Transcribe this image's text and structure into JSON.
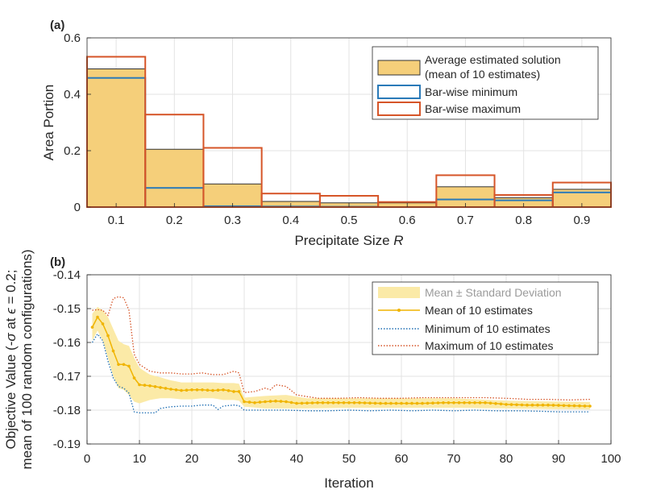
{
  "chart_data": [
    {
      "panel_label": "(a)",
      "type": "bar",
      "xlabel": "Precipitate Size ",
      "xlabel_var": "R",
      "ylabel": "Area Portion",
      "xlim": [
        0.05,
        0.95
      ],
      "ylim": [
        0,
        0.6
      ],
      "xticks": [
        "0.1",
        "0.2",
        "0.3",
        "0.4",
        "0.5",
        "0.6",
        "0.7",
        "0.8",
        "0.9"
      ],
      "yticks": [
        "0",
        "0.2",
        "0.4",
        "0.6"
      ],
      "grid": true,
      "categories": [
        0.1,
        0.2,
        0.3,
        0.4,
        0.5,
        0.6,
        0.7,
        0.8,
        0.9
      ],
      "bar_width": 0.1,
      "series": [
        {
          "name": "Average estimated solution",
          "name2": "(mean of 10 estimates)",
          "style": "filled",
          "values": [
            0.49,
            0.205,
            0.082,
            0.02,
            0.015,
            0.015,
            0.072,
            0.033,
            0.063
          ]
        },
        {
          "name": "Bar-wise minimum",
          "style": "outline",
          "values": [
            0.458,
            0.068,
            0.003,
            0.002,
            0.001,
            0.0,
            0.027,
            0.024,
            0.052
          ]
        },
        {
          "name": "Bar-wise maximum",
          "style": "outline",
          "values": [
            0.533,
            0.328,
            0.21,
            0.048,
            0.04,
            0.018,
            0.113,
            0.043,
            0.087
          ]
        }
      ],
      "legend_position": "top-right"
    },
    {
      "panel_label": "(b)",
      "type": "line",
      "xlabel": "Iteration",
      "ylabel_line1": "Objective Value (-",
      "ylabel_sigma": "σ",
      "ylabel_mid": " at ",
      "ylabel_eps": "ϵ",
      "ylabel_end": " = 0.2;",
      "ylabel_line2": "mean of 100 random configurations)",
      "xlim": [
        0,
        100
      ],
      "ylim": [
        -0.19,
        -0.14
      ],
      "xticks": [
        "0",
        "10",
        "20",
        "30",
        "40",
        "50",
        "60",
        "70",
        "80",
        "90",
        "100"
      ],
      "yticks": [
        "-0.19",
        "-0.18",
        "-0.17",
        "-0.16",
        "-0.15",
        "-0.14"
      ],
      "grid": true,
      "legend_position": "top-right",
      "band_label": "Mean ± Standard Deviation",
      "mean_label": "Mean of 10 estimates",
      "min_label": "Minimum of 10 estimates",
      "max_label": "Maximum of 10 estimates",
      "keypoints": {
        "mean": [
          [
            1,
            -0.1555
          ],
          [
            2,
            -0.1525
          ],
          [
            3,
            -0.1545
          ],
          [
            4,
            -0.158
          ],
          [
            5,
            -0.1625
          ],
          [
            6,
            -0.1665
          ],
          [
            7,
            -0.1665
          ],
          [
            8,
            -0.167
          ],
          [
            9,
            -0.1705
          ],
          [
            10,
            -0.1725
          ],
          [
            12,
            -0.1728
          ],
          [
            14,
            -0.1733
          ],
          [
            16,
            -0.1738
          ],
          [
            18,
            -0.1742
          ],
          [
            20,
            -0.174
          ],
          [
            22,
            -0.174
          ],
          [
            24,
            -0.1742
          ],
          [
            26,
            -0.174
          ],
          [
            28,
            -0.1745
          ],
          [
            29,
            -0.1745
          ],
          [
            30,
            -0.1775
          ],
          [
            32,
            -0.1778
          ],
          [
            34,
            -0.1775
          ],
          [
            36,
            -0.1773
          ],
          [
            38,
            -0.1775
          ],
          [
            40,
            -0.178
          ],
          [
            44,
            -0.1778
          ],
          [
            48,
            -0.1778
          ],
          [
            52,
            -0.1778
          ],
          [
            56,
            -0.178
          ],
          [
            60,
            -0.178
          ],
          [
            64,
            -0.178
          ],
          [
            68,
            -0.1778
          ],
          [
            72,
            -0.1778
          ],
          [
            76,
            -0.1778
          ],
          [
            80,
            -0.1783
          ],
          [
            84,
            -0.1785
          ],
          [
            88,
            -0.1785
          ],
          [
            92,
            -0.1787
          ],
          [
            96,
            -0.1788
          ]
        ],
        "band_upper": [
          [
            1,
            -0.1515
          ],
          [
            2,
            -0.1495
          ],
          [
            3,
            -0.1505
          ],
          [
            4,
            -0.1525
          ],
          [
            5,
            -0.156
          ],
          [
            6,
            -0.1595
          ],
          [
            7,
            -0.1605
          ],
          [
            8,
            -0.161
          ],
          [
            9,
            -0.1645
          ],
          [
            10,
            -0.1675
          ],
          [
            12,
            -0.1695
          ],
          [
            14,
            -0.1703
          ],
          [
            16,
            -0.1712
          ],
          [
            18,
            -0.1718
          ],
          [
            20,
            -0.1718
          ],
          [
            22,
            -0.1718
          ],
          [
            24,
            -0.1718
          ],
          [
            26,
            -0.172
          ],
          [
            28,
            -0.172
          ],
          [
            29,
            -0.1722
          ],
          [
            30,
            -0.1763
          ],
          [
            34,
            -0.1758
          ],
          [
            38,
            -0.1755
          ],
          [
            42,
            -0.1765
          ],
          [
            50,
            -0.1765
          ],
          [
            60,
            -0.1765
          ],
          [
            70,
            -0.1765
          ],
          [
            80,
            -0.1772
          ],
          [
            90,
            -0.1775
          ],
          [
            96,
            -0.1776
          ]
        ],
        "band_lower": [
          [
            1,
            -0.1595
          ],
          [
            2,
            -0.1565
          ],
          [
            3,
            -0.1595
          ],
          [
            4,
            -0.1645
          ],
          [
            5,
            -0.17
          ],
          [
            6,
            -0.1735
          ],
          [
            7,
            -0.174
          ],
          [
            8,
            -0.1755
          ],
          [
            9,
            -0.1775
          ],
          [
            10,
            -0.178
          ],
          [
            12,
            -0.177
          ],
          [
            14,
            -0.1765
          ],
          [
            16,
            -0.1765
          ],
          [
            18,
            -0.1768
          ],
          [
            20,
            -0.1768
          ],
          [
            22,
            -0.1765
          ],
          [
            24,
            -0.1765
          ],
          [
            26,
            -0.177
          ],
          [
            28,
            -0.177
          ],
          [
            29,
            -0.1772
          ],
          [
            30,
            -0.179
          ],
          [
            34,
            -0.1795
          ],
          [
            38,
            -0.1795
          ],
          [
            42,
            -0.1795
          ],
          [
            50,
            -0.1793
          ],
          [
            60,
            -0.1793
          ],
          [
            70,
            -0.1793
          ],
          [
            80,
            -0.1795
          ],
          [
            90,
            -0.1797
          ],
          [
            96,
            -0.1798
          ]
        ],
        "min": [
          [
            1,
            -0.16
          ],
          [
            2,
            -0.1575
          ],
          [
            3,
            -0.1595
          ],
          [
            4,
            -0.1655
          ],
          [
            5,
            -0.1705
          ],
          [
            6,
            -0.173
          ],
          [
            7,
            -0.1735
          ],
          [
            8,
            -0.175
          ],
          [
            9,
            -0.1805
          ],
          [
            10,
            -0.1808
          ],
          [
            12,
            -0.1808
          ],
          [
            13,
            -0.1808
          ],
          [
            14,
            -0.1795
          ],
          [
            16,
            -0.179
          ],
          [
            18,
            -0.1788
          ],
          [
            20,
            -0.1788
          ],
          [
            22,
            -0.1785
          ],
          [
            24,
            -0.1785
          ],
          [
            25,
            -0.1798
          ],
          [
            26,
            -0.1788
          ],
          [
            28,
            -0.1785
          ],
          [
            29,
            -0.1787
          ],
          [
            30,
            -0.18
          ],
          [
            34,
            -0.18
          ],
          [
            38,
            -0.18
          ],
          [
            42,
            -0.1802
          ],
          [
            46,
            -0.1802
          ],
          [
            50,
            -0.18
          ],
          [
            54,
            -0.1802
          ],
          [
            58,
            -0.18
          ],
          [
            62,
            -0.1802
          ],
          [
            66,
            -0.18
          ],
          [
            70,
            -0.1802
          ],
          [
            74,
            -0.18
          ],
          [
            78,
            -0.1802
          ],
          [
            82,
            -0.1802
          ],
          [
            86,
            -0.1803
          ],
          [
            90,
            -0.1805
          ],
          [
            94,
            -0.1805
          ],
          [
            96,
            -0.1805
          ]
        ],
        "max": [
          [
            1,
            -0.1505
          ],
          [
            2,
            -0.1503
          ],
          [
            3,
            -0.1505
          ],
          [
            4,
            -0.152
          ],
          [
            5,
            -0.147
          ],
          [
            6,
            -0.1465
          ],
          [
            7,
            -0.1468
          ],
          [
            8,
            -0.1505
          ],
          [
            9,
            -0.1635
          ],
          [
            10,
            -0.1665
          ],
          [
            12,
            -0.1685
          ],
          [
            14,
            -0.169
          ],
          [
            16,
            -0.169
          ],
          [
            18,
            -0.1693
          ],
          [
            20,
            -0.1693
          ],
          [
            22,
            -0.169
          ],
          [
            24,
            -0.1695
          ],
          [
            26,
            -0.1695
          ],
          [
            28,
            -0.1685
          ],
          [
            29,
            -0.169
          ],
          [
            30,
            -0.1748
          ],
          [
            32,
            -0.1745
          ],
          [
            34,
            -0.1735
          ],
          [
            35,
            -0.174
          ],
          [
            36,
            -0.1725
          ],
          [
            38,
            -0.173
          ],
          [
            40,
            -0.1755
          ],
          [
            44,
            -0.1765
          ],
          [
            48,
            -0.1765
          ],
          [
            52,
            -0.1763
          ],
          [
            56,
            -0.1765
          ],
          [
            60,
            -0.1765
          ],
          [
            64,
            -0.1763
          ],
          [
            68,
            -0.1763
          ],
          [
            72,
            -0.1763
          ],
          [
            76,
            -0.1763
          ],
          [
            80,
            -0.1765
          ],
          [
            84,
            -0.1768
          ],
          [
            88,
            -0.1768
          ],
          [
            92,
            -0.177
          ],
          [
            96,
            -0.1768
          ]
        ]
      }
    }
  ]
}
